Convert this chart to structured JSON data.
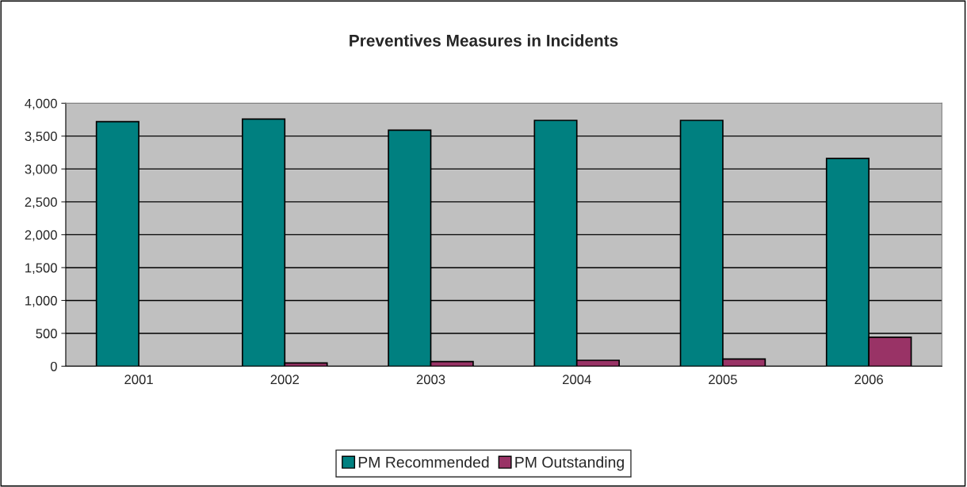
{
  "chart_data": {
    "type": "bar",
    "title": "Preventives Measures in Incidents",
    "categories": [
      "2001",
      "2002",
      "2003",
      "2004",
      "2005",
      "2006"
    ],
    "series": [
      {
        "name": "PM Recommended",
        "color": "#008080",
        "values": [
          3720,
          3760,
          3590,
          3740,
          3740,
          3160
        ]
      },
      {
        "name": "PM Outstanding",
        "color": "#993366",
        "values": [
          null,
          50,
          70,
          90,
          110,
          440
        ]
      }
    ],
    "ylim": [
      0,
      4000
    ],
    "yticks": [
      {
        "value": 0,
        "label": "0"
      },
      {
        "value": 500,
        "label": "500"
      },
      {
        "value": 1000,
        "label": "1,000"
      },
      {
        "value": 1500,
        "label": "1,500"
      },
      {
        "value": 2000,
        "label": "2,000"
      },
      {
        "value": 2500,
        "label": "2,500"
      },
      {
        "value": 3000,
        "label": "3,000"
      },
      {
        "value": 3500,
        "label": "3,500"
      },
      {
        "value": 4000,
        "label": "4,000"
      }
    ],
    "grid": "y",
    "legend": "bottom"
  }
}
